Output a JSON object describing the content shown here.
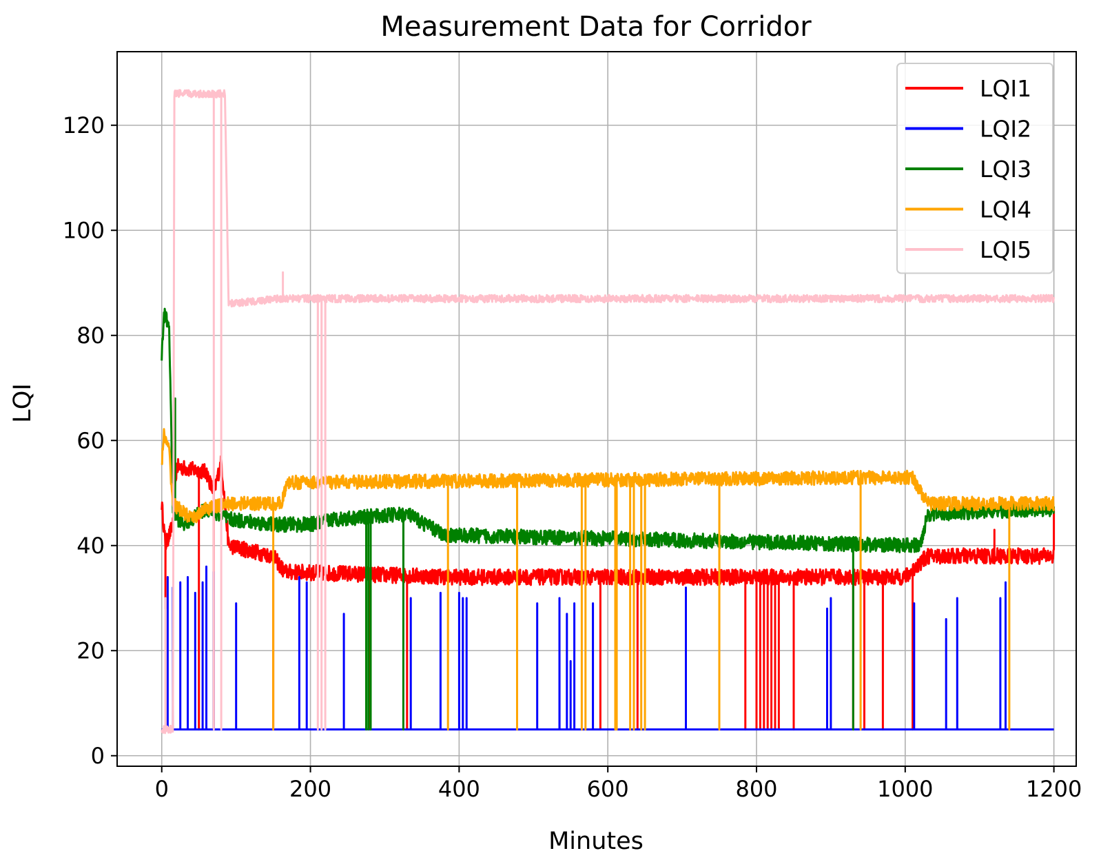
{
  "chart_data": {
    "type": "line",
    "title": "Measurement Data for Corridor",
    "xlabel": "Minutes",
    "ylabel": "LQI",
    "xlim": [
      -60,
      1230
    ],
    "ylim": [
      -2,
      134
    ],
    "xticks": [
      0,
      200,
      400,
      600,
      800,
      1000,
      1200
    ],
    "yticks": [
      0,
      20,
      40,
      60,
      80,
      100,
      120
    ],
    "xtick_labels": [
      "0",
      "200",
      "400",
      "600",
      "800",
      "1000",
      "1200"
    ],
    "ytick_labels": [
      "0",
      "20",
      "40",
      "60",
      "80",
      "100",
      "120"
    ],
    "grid": true,
    "legend_position": "top-right",
    "series": [
      {
        "name": "LQI1",
        "color": "#ff0000",
        "base": [
          [
            0,
            48
          ],
          [
            5,
            40
          ],
          [
            15,
            44
          ],
          [
            20,
            55
          ],
          [
            60,
            54
          ],
          [
            70,
            50
          ],
          [
            80,
            56
          ],
          [
            90,
            40
          ],
          [
            150,
            38
          ],
          [
            165,
            35
          ],
          [
            400,
            34
          ],
          [
            1000,
            34
          ],
          [
            1030,
            38
          ],
          [
            1200,
            38
          ]
        ],
        "noise": 1.5,
        "dips": [
          [
            5,
            28
          ],
          [
            50,
            5
          ],
          [
            70,
            5
          ],
          [
            150,
            5
          ],
          [
            280,
            5
          ],
          [
            330,
            5
          ],
          [
            590,
            5
          ],
          [
            640,
            5
          ],
          [
            785,
            5
          ],
          [
            800,
            5
          ],
          [
            805,
            5
          ],
          [
            810,
            5
          ],
          [
            815,
            5
          ],
          [
            820,
            5
          ],
          [
            825,
            5
          ],
          [
            830,
            5
          ],
          [
            850,
            5
          ],
          [
            930,
            5
          ],
          [
            945,
            5
          ],
          [
            970,
            5
          ],
          [
            1010,
            5
          ]
        ],
        "spikes": [
          [
            1200,
            47
          ],
          [
            1120,
            43
          ]
        ]
      },
      {
        "name": "LQI2",
        "color": "#0000ff",
        "base": [
          [
            0,
            5
          ],
          [
            1200,
            5
          ]
        ],
        "noise": 0,
        "spikes": [
          [
            8,
            34
          ],
          [
            15,
            32
          ],
          [
            25,
            33
          ],
          [
            35,
            34
          ],
          [
            45,
            31
          ],
          [
            55,
            33
          ],
          [
            60,
            36
          ],
          [
            70,
            35
          ],
          [
            100,
            29
          ],
          [
            185,
            34
          ],
          [
            195,
            33
          ],
          [
            245,
            27
          ],
          [
            335,
            30
          ],
          [
            375,
            31
          ],
          [
            400,
            31
          ],
          [
            405,
            30
          ],
          [
            410,
            30
          ],
          [
            505,
            29
          ],
          [
            535,
            30
          ],
          [
            545,
            27
          ],
          [
            550,
            18
          ],
          [
            555,
            29
          ],
          [
            580,
            29
          ],
          [
            705,
            32
          ],
          [
            895,
            28
          ],
          [
            900,
            30
          ],
          [
            1012,
            29
          ],
          [
            1055,
            26
          ],
          [
            1070,
            30
          ],
          [
            1128,
            30
          ],
          [
            1135,
            33
          ]
        ]
      },
      {
        "name": "LQI3",
        "color": "#008000",
        "base": [
          [
            0,
            76
          ],
          [
            3,
            84
          ],
          [
            10,
            82
          ],
          [
            15,
            46
          ],
          [
            30,
            44
          ],
          [
            60,
            47
          ],
          [
            90,
            45
          ],
          [
            150,
            44
          ],
          [
            200,
            44
          ],
          [
            230,
            45
          ],
          [
            330,
            46
          ],
          [
            380,
            42
          ],
          [
            1020,
            40
          ],
          [
            1030,
            46
          ],
          [
            1200,
            47
          ]
        ],
        "noise": 1.4,
        "dips": [
          [
            275,
            5
          ],
          [
            278,
            5
          ],
          [
            281,
            5
          ],
          [
            325,
            5
          ],
          [
            930,
            5
          ]
        ],
        "spikes": [
          [
            18,
            68
          ]
        ]
      },
      {
        "name": "LQI4",
        "color": "#ffa500",
        "base": [
          [
            0,
            56
          ],
          [
            3,
            61
          ],
          [
            10,
            58
          ],
          [
            15,
            48
          ],
          [
            40,
            45
          ],
          [
            60,
            47
          ],
          [
            90,
            48
          ],
          [
            160,
            48
          ],
          [
            170,
            52
          ],
          [
            1010,
            53
          ],
          [
            1030,
            48
          ],
          [
            1200,
            48
          ]
        ],
        "noise": 1.3,
        "dips": [
          [
            150,
            5
          ],
          [
            385,
            5
          ],
          [
            478,
            5
          ],
          [
            565,
            5
          ],
          [
            570,
            5
          ],
          [
            610,
            5
          ],
          [
            612,
            5
          ],
          [
            630,
            5
          ],
          [
            635,
            5
          ],
          [
            645,
            5
          ],
          [
            650,
            5
          ],
          [
            750,
            5
          ],
          [
            940,
            5
          ],
          [
            1140,
            5
          ]
        ]
      },
      {
        "name": "LQI5",
        "color": "#ffc0cb",
        "base": [
          [
            0,
            5
          ],
          [
            15,
            5
          ],
          [
            17,
            126
          ],
          [
            85,
            126
          ],
          [
            90,
            86
          ],
          [
            160,
            87
          ],
          [
            200,
            87
          ],
          [
            1200,
            87
          ]
        ],
        "noise": 0.7,
        "dips": [
          [
            5,
            30
          ],
          [
            70,
            5
          ],
          [
            80,
            5
          ],
          [
            210,
            5
          ],
          [
            215,
            5
          ],
          [
            220,
            5
          ]
        ],
        "spikes": [
          [
            163,
            92
          ],
          [
            650,
            87
          ]
        ]
      }
    ]
  }
}
